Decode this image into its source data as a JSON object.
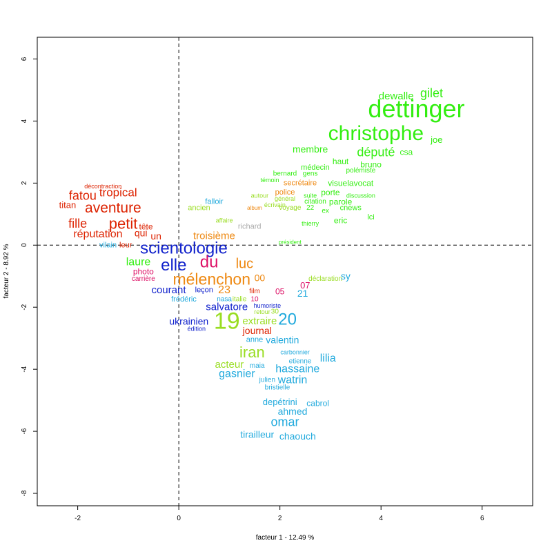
{
  "chart_data": {
    "type": "scatter",
    "title": "",
    "xlabel": "facteur  1  - 12.49 %",
    "ylabel": "facteur  2  - 8.92 %",
    "xlim": [
      -2.8,
      7.0
    ],
    "ylim": [
      -8.4,
      6.7
    ],
    "xticks": [
      -2,
      0,
      2,
      4,
      6
    ],
    "yticks": [
      -8,
      -6,
      -4,
      -2,
      0,
      2,
      4,
      6
    ],
    "xtick_labels": [
      "-2",
      "0",
      "2",
      "4",
      "6"
    ],
    "ytick_labels": [
      "-8",
      "-6",
      "-4",
      "-2",
      "0",
      "2",
      "4",
      "6"
    ],
    "reference_lines": {
      "x": 0,
      "y": 0,
      "style": "dashed"
    },
    "grid": false,
    "colors": {
      "green": "#33ee11",
      "lime": "#99dd22",
      "red": "#dd2200",
      "blue": "#1122cc",
      "orange": "#ee8811",
      "cyan": "#22aadd",
      "magenta": "#dd1166",
      "gray": "#aaaaaa"
    },
    "points": [
      {
        "label": "dettinger",
        "x": 4.7,
        "y": 4.4,
        "color": "#33ee11",
        "weight": 36
      },
      {
        "label": "christophe",
        "x": 3.9,
        "y": 3.6,
        "color": "#33ee11",
        "weight": 30
      },
      {
        "label": "gilet",
        "x": 5.0,
        "y": 4.9,
        "color": "#33ee11",
        "weight": 18
      },
      {
        "label": "dewalle",
        "x": 4.3,
        "y": 4.8,
        "color": "#33ee11",
        "weight": 15
      },
      {
        "label": "député",
        "x": 3.9,
        "y": 3.0,
        "color": "#33ee11",
        "weight": 18
      },
      {
        "label": "joe",
        "x": 5.1,
        "y": 3.4,
        "color": "#33ee11",
        "weight": 13
      },
      {
        "label": "csa",
        "x": 4.5,
        "y": 3.0,
        "color": "#33ee11",
        "weight": 12
      },
      {
        "label": "membre",
        "x": 2.6,
        "y": 3.1,
        "color": "#33ee11",
        "weight": 14
      },
      {
        "label": "haut",
        "x": 3.2,
        "y": 2.7,
        "color": "#33ee11",
        "weight": 12
      },
      {
        "label": "bruno",
        "x": 3.8,
        "y": 2.6,
        "color": "#33ee11",
        "weight": 12
      },
      {
        "label": "médecin",
        "x": 2.7,
        "y": 2.5,
        "color": "#33ee11",
        "weight": 11
      },
      {
        "label": "polémiste",
        "x": 3.6,
        "y": 2.4,
        "color": "#33ee11",
        "weight": 10
      },
      {
        "label": "bernard",
        "x": 2.1,
        "y": 2.3,
        "color": "#33ee11",
        "weight": 10
      },
      {
        "label": "gens",
        "x": 2.6,
        "y": 2.3,
        "color": "#33ee11",
        "weight": 10
      },
      {
        "label": "témoin",
        "x": 1.8,
        "y": 2.1,
        "color": "#33ee11",
        "weight": 9
      },
      {
        "label": "secrétaire",
        "x": 2.4,
        "y": 2.0,
        "color": "#ee8811",
        "weight": 11
      },
      {
        "label": "visuelavocat",
        "x": 3.4,
        "y": 2.0,
        "color": "#33ee11",
        "weight": 12
      },
      {
        "label": "police",
        "x": 2.1,
        "y": 1.7,
        "color": "#ee8811",
        "weight": 11
      },
      {
        "label": "autour",
        "x": 1.6,
        "y": 1.6,
        "color": "#99dd22",
        "weight": 9
      },
      {
        "label": "général",
        "x": 2.1,
        "y": 1.5,
        "color": "#99dd22",
        "weight": 9
      },
      {
        "label": "suite",
        "x": 2.6,
        "y": 1.6,
        "color": "#33ee11",
        "weight": 9
      },
      {
        "label": "porte",
        "x": 3.0,
        "y": 1.7,
        "color": "#33ee11",
        "weight": 12
      },
      {
        "label": "discussion",
        "x": 3.6,
        "y": 1.6,
        "color": "#33ee11",
        "weight": 9
      },
      {
        "label": "citation",
        "x": 2.7,
        "y": 1.4,
        "color": "#33ee11",
        "weight": 10
      },
      {
        "label": "parole",
        "x": 3.2,
        "y": 1.4,
        "color": "#33ee11",
        "weight": 12
      },
      {
        "label": "écrivain",
        "x": 1.9,
        "y": 1.3,
        "color": "#99dd22",
        "weight": 9
      },
      {
        "label": "album",
        "x": 1.5,
        "y": 1.2,
        "color": "#ee8811",
        "weight": 8
      },
      {
        "label": "voyage",
        "x": 2.2,
        "y": 1.2,
        "color": "#99dd22",
        "weight": 10
      },
      {
        "label": "22",
        "x": 2.6,
        "y": 1.2,
        "color": "#33ee11",
        "weight": 10
      },
      {
        "label": "ex",
        "x": 2.9,
        "y": 1.1,
        "color": "#33ee11",
        "weight": 10
      },
      {
        "label": "cnews",
        "x": 3.4,
        "y": 1.2,
        "color": "#33ee11",
        "weight": 11
      },
      {
        "label": "lci",
        "x": 3.8,
        "y": 0.9,
        "color": "#33ee11",
        "weight": 11
      },
      {
        "label": "eric",
        "x": 3.2,
        "y": 0.8,
        "color": "#33ee11",
        "weight": 12
      },
      {
        "label": "thierry",
        "x": 2.6,
        "y": 0.7,
        "color": "#33ee11",
        "weight": 9
      },
      {
        "label": "président",
        "x": 2.2,
        "y": 0.1,
        "color": "#33ee11",
        "weight": 8
      },
      {
        "label": "richard",
        "x": 1.4,
        "y": 0.6,
        "color": "#aaaaaa",
        "weight": 11
      },
      {
        "label": "falloir",
        "x": 0.7,
        "y": 1.4,
        "color": "#22aadd",
        "weight": 11
      },
      {
        "label": "ancien",
        "x": 0.4,
        "y": 1.2,
        "color": "#99dd22",
        "weight": 11
      },
      {
        "label": "affaire",
        "x": 0.9,
        "y": 0.8,
        "color": "#99dd22",
        "weight": 9
      },
      {
        "label": "troisième",
        "x": 0.7,
        "y": 0.3,
        "color": "#ee8811",
        "weight": 15
      },
      {
        "label": "décontraction",
        "x": -1.5,
        "y": 1.9,
        "color": "#dd2200",
        "weight": 9
      },
      {
        "label": "tropical",
        "x": -1.2,
        "y": 1.7,
        "color": "#dd2200",
        "weight": 17
      },
      {
        "label": "fatou",
        "x": -1.9,
        "y": 1.6,
        "color": "#dd2200",
        "weight": 18
      },
      {
        "label": "aventure",
        "x": -1.3,
        "y": 1.2,
        "color": "#dd2200",
        "weight": 21
      },
      {
        "label": "titan",
        "x": -2.2,
        "y": 1.3,
        "color": "#dd2200",
        "weight": 13
      },
      {
        "label": "petit",
        "x": -1.1,
        "y": 0.7,
        "color": "#dd2200",
        "weight": 22
      },
      {
        "label": "fille",
        "x": -2.0,
        "y": 0.7,
        "color": "#dd2200",
        "weight": 18
      },
      {
        "label": "réputation",
        "x": -1.6,
        "y": 0.35,
        "color": "#dd2200",
        "weight": 16
      },
      {
        "label": "tête",
        "x": -0.65,
        "y": 0.6,
        "color": "#dd2200",
        "weight": 12
      },
      {
        "label": "qui",
        "x": -0.75,
        "y": 0.4,
        "color": "#dd2200",
        "weight": 14
      },
      {
        "label": "un",
        "x": -0.45,
        "y": 0.3,
        "color": "#dd2200",
        "weight": 14
      },
      {
        "label": "vilain",
        "x": -1.4,
        "y": 0.0,
        "color": "#22aadd",
        "weight": 11
      },
      {
        "label": "leur",
        "x": -1.05,
        "y": 0.0,
        "color": "#dd2200",
        "weight": 11
      },
      {
        "label": "scientologie",
        "x": 0.1,
        "y": -0.1,
        "color": "#1122cc",
        "weight": 24
      },
      {
        "label": "laure",
        "x": -0.8,
        "y": -0.55,
        "color": "#33ee11",
        "weight": 16
      },
      {
        "label": "elle",
        "x": -0.1,
        "y": -0.65,
        "color": "#1122cc",
        "weight": 24
      },
      {
        "label": "du",
        "x": 0.6,
        "y": -0.55,
        "color": "#dd1166",
        "weight": 24
      },
      {
        "label": "luc",
        "x": 1.3,
        "y": -0.6,
        "color": "#ee8811",
        "weight": 20
      },
      {
        "label": "mélenchon",
        "x": 0.65,
        "y": -1.1,
        "color": "#ee8811",
        "weight": 23
      },
      {
        "label": "photo",
        "x": -0.7,
        "y": -0.85,
        "color": "#dd1166",
        "weight": 12
      },
      {
        "label": "carrière",
        "x": -0.7,
        "y": -1.1,
        "color": "#dd1166",
        "weight": 10
      },
      {
        "label": "courant",
        "x": -0.2,
        "y": -1.45,
        "color": "#1122cc",
        "weight": 15
      },
      {
        "label": "leçon",
        "x": 0.5,
        "y": -1.45,
        "color": "#1122cc",
        "weight": 11
      },
      {
        "label": "23",
        "x": 0.9,
        "y": -1.45,
        "color": "#ee8811",
        "weight": 16
      },
      {
        "label": "frédéric",
        "x": 0.1,
        "y": -1.75,
        "color": "#22aadd",
        "weight": 11
      },
      {
        "label": "nasa",
        "x": 0.9,
        "y": -1.75,
        "color": "#22aadd",
        "weight": 10
      },
      {
        "label": "salvatore",
        "x": 0.95,
        "y": -2.0,
        "color": "#1122cc",
        "weight": 15
      },
      {
        "label": "film",
        "x": 1.5,
        "y": -1.5,
        "color": "#dd2200",
        "weight": 10
      },
      {
        "label": "italie",
        "x": 1.2,
        "y": -1.75,
        "color": "#99dd22",
        "weight": 10
      },
      {
        "label": "00",
        "x": 1.6,
        "y": -1.05,
        "color": "#ee8811",
        "weight": 14
      },
      {
        "label": "07",
        "x": 2.5,
        "y": -1.3,
        "color": "#dd1166",
        "weight": 13
      },
      {
        "label": "05",
        "x": 2.0,
        "y": -1.5,
        "color": "#dd1166",
        "weight": 12
      },
      {
        "label": "21",
        "x": 2.45,
        "y": -1.55,
        "color": "#22aadd",
        "weight": 14
      },
      {
        "label": "10",
        "x": 1.5,
        "y": -1.75,
        "color": "#dd1166",
        "weight": 10
      },
      {
        "label": "déclaration",
        "x": 2.9,
        "y": -1.1,
        "color": "#99dd22",
        "weight": 10
      },
      {
        "label": "sy",
        "x": 3.3,
        "y": -1.0,
        "color": "#22aadd",
        "weight": 14
      },
      {
        "label": "humoriste",
        "x": 1.75,
        "y": -1.95,
        "color": "#1122cc",
        "weight": 9
      },
      {
        "label": "retour",
        "x": 1.65,
        "y": -2.15,
        "color": "#99dd22",
        "weight": 9
      },
      {
        "label": "30",
        "x": 1.9,
        "y": -2.15,
        "color": "#99dd22",
        "weight": 10
      },
      {
        "label": "ukrainien",
        "x": 0.2,
        "y": -2.45,
        "color": "#1122cc",
        "weight": 14
      },
      {
        "label": "19",
        "x": 0.95,
        "y": -2.45,
        "color": "#99dd22",
        "weight": 34
      },
      {
        "label": "extraire",
        "x": 1.6,
        "y": -2.45,
        "color": "#99dd22",
        "weight": 15
      },
      {
        "label": "20",
        "x": 2.15,
        "y": -2.4,
        "color": "#22aadd",
        "weight": 24
      },
      {
        "label": "édition",
        "x": 0.35,
        "y": -2.7,
        "color": "#1122cc",
        "weight": 9
      },
      {
        "label": "journal",
        "x": 1.55,
        "y": -2.75,
        "color": "#dd2200",
        "weight": 14
      },
      {
        "label": "anne",
        "x": 1.5,
        "y": -3.05,
        "color": "#22aadd",
        "weight": 11
      },
      {
        "label": "valentin",
        "x": 2.05,
        "y": -3.05,
        "color": "#22aadd",
        "weight": 14
      },
      {
        "label": "iran",
        "x": 1.45,
        "y": -3.45,
        "color": "#99dd22",
        "weight": 22
      },
      {
        "label": "carbonnier",
        "x": 2.3,
        "y": -3.45,
        "color": "#22aadd",
        "weight": 9
      },
      {
        "label": "lilia",
        "x": 2.95,
        "y": -3.65,
        "color": "#22aadd",
        "weight": 16
      },
      {
        "label": "acteur",
        "x": 1.0,
        "y": -3.85,
        "color": "#99dd22",
        "weight": 15
      },
      {
        "label": "maia",
        "x": 1.55,
        "y": -3.9,
        "color": "#22aadd",
        "weight": 10
      },
      {
        "label": "etienne",
        "x": 2.4,
        "y": -3.75,
        "color": "#22aadd",
        "weight": 10
      },
      {
        "label": "hassaine",
        "x": 2.35,
        "y": -4.0,
        "color": "#22aadd",
        "weight": 16
      },
      {
        "label": "gasnier",
        "x": 1.15,
        "y": -4.15,
        "color": "#22aadd",
        "weight": 16
      },
      {
        "label": "watrin",
        "x": 2.25,
        "y": -4.35,
        "color": "#22aadd",
        "weight": 16
      },
      {
        "label": "julien",
        "x": 1.75,
        "y": -4.35,
        "color": "#22aadd",
        "weight": 10
      },
      {
        "label": "bristielle",
        "x": 1.95,
        "y": -4.6,
        "color": "#22aadd",
        "weight": 10
      },
      {
        "label": "depétrini",
        "x": 2.0,
        "y": -5.05,
        "color": "#22aadd",
        "weight": 13
      },
      {
        "label": "cabrol",
        "x": 2.75,
        "y": -5.1,
        "color": "#22aadd",
        "weight": 12
      },
      {
        "label": "ahmed",
        "x": 2.25,
        "y": -5.35,
        "color": "#22aadd",
        "weight": 14
      },
      {
        "label": "omar",
        "x": 2.1,
        "y": -5.7,
        "color": "#22aadd",
        "weight": 18
      },
      {
        "label": "tirailleur",
        "x": 1.55,
        "y": -6.1,
        "color": "#22aadd",
        "weight": 14
      },
      {
        "label": "chaouch",
        "x": 2.35,
        "y": -6.15,
        "color": "#22aadd",
        "weight": 14
      }
    ]
  }
}
